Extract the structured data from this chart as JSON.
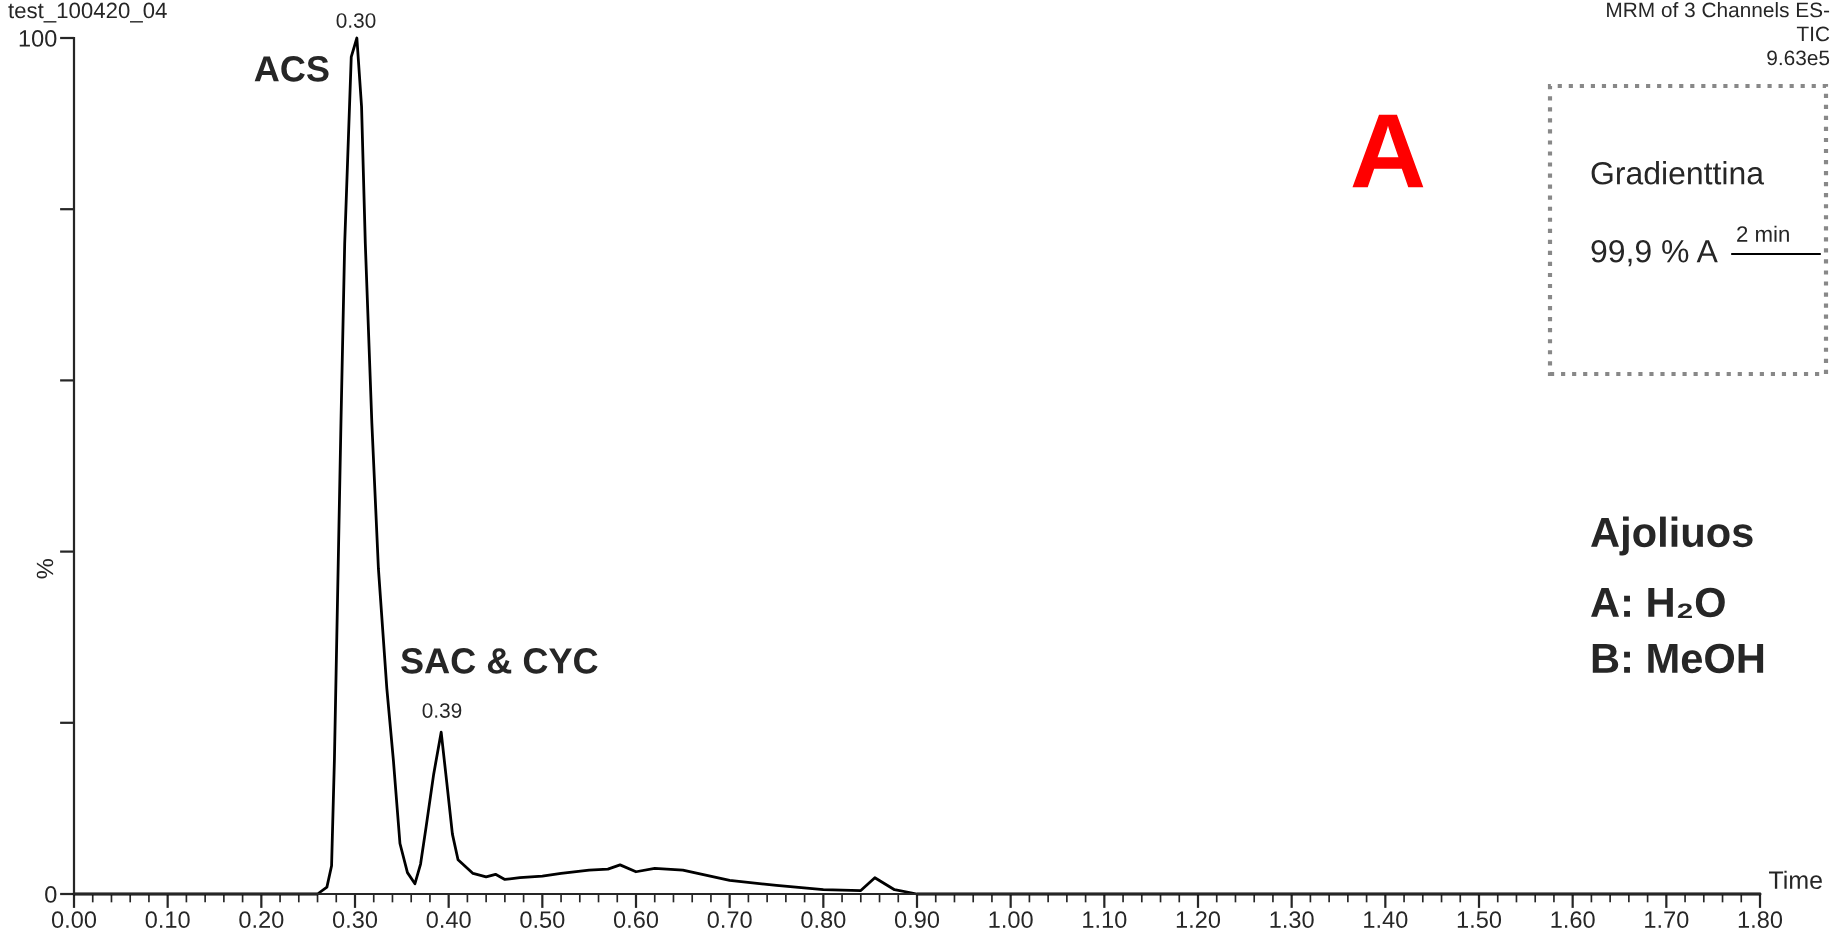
{
  "chart_data": {
    "type": "line",
    "title": "test_100420_04",
    "xlabel": "Time",
    "ylabel": "%",
    "x": [
      0,
      0.26,
      0.27,
      0.275,
      0.278,
      0.285,
      0.289,
      0.296,
      0.302,
      0.307,
      0.311,
      0.318,
      0.325,
      0.334,
      0.341,
      0.348,
      0.356,
      0.364,
      0.37,
      0.376,
      0.384,
      0.392,
      0.398,
      0.404,
      0.41,
      0.426,
      0.44,
      0.45,
      0.46,
      0.476,
      0.5,
      0.52,
      0.55,
      0.57,
      0.583,
      0.6,
      0.62,
      0.65,
      0.7,
      0.75,
      0.8,
      0.84,
      0.855,
      0.876,
      0.9,
      1.8
    ],
    "series": [
      {
        "color": "#000000",
        "values": [
          0,
          0,
          0.8,
          3.3,
          15.6,
          55,
          76,
          97.8,
          100,
          92,
          76,
          55,
          38,
          24,
          15.6,
          5.9,
          2.5,
          1.2,
          3.5,
          7.9,
          14,
          18.9,
          13,
          7,
          4.0,
          2.4,
          2.0,
          2.3,
          1.7,
          1.9,
          2.1,
          2.4,
          2.8,
          2.9,
          3.4,
          2.6,
          3.0,
          2.8,
          1.6,
          1.0,
          0.5,
          0.4,
          1.9,
          0.5,
          0,
          0
        ]
      }
    ],
    "xlim": [
      0,
      1.8
    ],
    "ylim": [
      0,
      100
    ],
    "xticks": [
      {
        "value": 0,
        "label": "0.00"
      },
      {
        "value": 0.1,
        "label": "0.10"
      },
      {
        "value": 0.2,
        "label": "0.20"
      },
      {
        "value": 0.3,
        "label": "0.30"
      },
      {
        "value": 0.4,
        "label": "0.40"
      },
      {
        "value": 0.5,
        "label": "0.50"
      },
      {
        "value": 0.6,
        "label": "0.60"
      },
      {
        "value": 0.7,
        "label": "0.70"
      },
      {
        "value": 0.8,
        "label": "0.80"
      },
      {
        "value": 0.9,
        "label": "0.90"
      },
      {
        "value": 1.0,
        "label": "1.00"
      },
      {
        "value": 1.1,
        "label": "1.10"
      },
      {
        "value": 1.2,
        "label": "1.20"
      },
      {
        "value": 1.3,
        "label": "1.30"
      },
      {
        "value": 1.4,
        "label": "1.40"
      },
      {
        "value": 1.5,
        "label": "1.50"
      },
      {
        "value": 1.6,
        "label": "1.60"
      },
      {
        "value": 1.7,
        "label": "1.70"
      },
      {
        "value": 1.8,
        "label": "1.80"
      }
    ],
    "yticks": [
      0,
      {
        "value": 20,
        "label": null
      },
      {
        "value": 40,
        "label": null
      },
      {
        "value": 60,
        "label": null
      },
      {
        "value": 80,
        "label": null
      },
      100
    ],
    "grid": false,
    "legend": false,
    "marker": "none",
    "line_style": "solid",
    "annotations": [
      "0.30",
      "0.39",
      "ACS",
      "SAC & CYC",
      "MRM of 3 Channels ES-",
      "TIC",
      "9.63e5",
      "A",
      "Gradienttina",
      "99,9 % A",
      "2 min",
      "Ajoliuos",
      "A: H₂O",
      "B: MeOH"
    ]
  }
}
